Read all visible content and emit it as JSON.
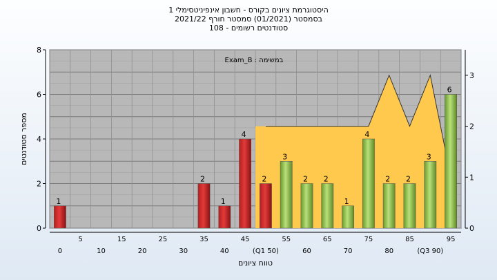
{
  "titles": {
    "line1": "היסטוגרמת ציונים בקורס - חשבון אינפיניטסימלי 1",
    "line2": "בסמסטר  (01/2021)  סמסטר חורף 2021/22",
    "line3": "סטודנטים רשומים - 108"
  },
  "chart_data": {
    "type": "bar",
    "title": "היסטוגרמת ציונים בקורס - חשבון אינפיניטסימלי 1",
    "annotation": "Exam_B : במשימה",
    "xlabel": "טווח ציונים",
    "ylabel": "מספר סטודנטים",
    "ylim": [
      0,
      8
    ],
    "y2lim": [
      0,
      3.5
    ],
    "yticks": [
      0,
      2,
      4,
      6,
      8
    ],
    "y2ticks": [
      0,
      1,
      2,
      3
    ],
    "grid": true,
    "categories": [
      "0",
      "5",
      "10",
      "15",
      "20",
      "25",
      "30",
      "35",
      "40",
      "45",
      "50",
      "55",
      "60",
      "65",
      "70",
      "75",
      "80",
      "85",
      "90",
      "95"
    ],
    "category_labels": [
      "0",
      "5",
      "10",
      "15",
      "20",
      "25",
      "30",
      "35",
      "40",
      "45",
      "(Q1 50)",
      "55",
      "60",
      "65",
      "70",
      "75",
      "80",
      "85",
      "(Q3 90)",
      "95"
    ],
    "values": [
      1,
      0,
      0,
      0,
      0,
      0,
      0,
      2,
      1,
      4,
      2,
      3,
      2,
      2,
      1,
      4,
      2,
      2,
      3,
      6
    ],
    "value_labels": [
      "1",
      "",
      "",
      "",
      "",
      "",
      "",
      "2",
      "1",
      "4",
      "2",
      "3",
      "2",
      "2",
      "1",
      "4",
      "2",
      "2",
      "3",
      "6"
    ],
    "bar_colors": [
      "red",
      "",
      "",
      "",
      "",
      "",
      "",
      "red",
      "red",
      "red",
      "red",
      "green",
      "green",
      "green",
      "green",
      "green",
      "green",
      "green",
      "green",
      "green"
    ],
    "iqr_range": [
      "50",
      "90"
    ],
    "curve": {
      "axis": "right",
      "x": [
        50,
        75,
        80,
        85,
        90,
        95
      ],
      "y": [
        2,
        2,
        3,
        2,
        3,
        1
      ]
    },
    "colors": {
      "red": "#e23a3a",
      "green": "#8cbf4a",
      "iqr_fill": "#ffc94d",
      "plot_bg": "#b8b8b8"
    }
  }
}
